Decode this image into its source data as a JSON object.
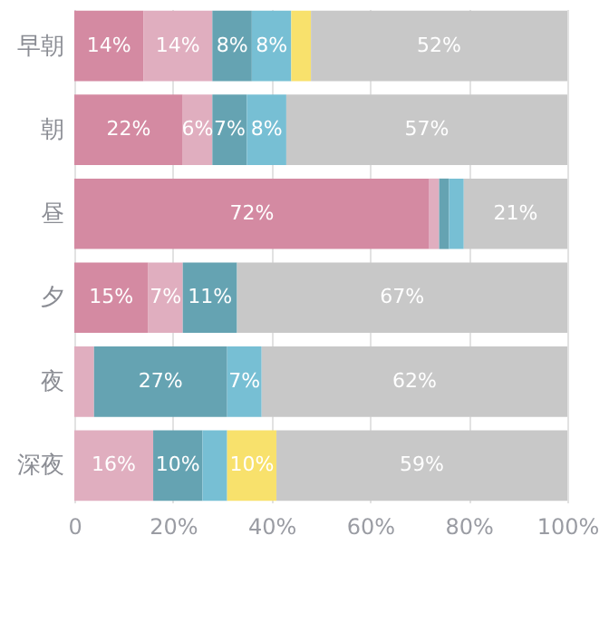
{
  "chart_data": {
    "type": "bar",
    "orientation": "horizontal",
    "stacked": true,
    "categories": [
      "早朝",
      "朝",
      "昼",
      "夕",
      "夜",
      "深夜"
    ],
    "series": [
      {
        "color": "#d48aa2",
        "values": [
          14,
          22,
          72,
          15,
          0,
          0
        ],
        "value_labels": [
          "14%",
          "22%",
          "72%",
          "15%",
          null,
          null
        ]
      },
      {
        "color": "#e0aebf",
        "values": [
          14,
          6,
          2,
          7,
          4,
          16
        ],
        "value_labels": [
          "14%",
          "6%",
          null,
          "7%",
          null,
          "16%"
        ]
      },
      {
        "color": "#65a3b2",
        "values": [
          8,
          7,
          2,
          11,
          27,
          10
        ],
        "value_labels": [
          "8%",
          "7%",
          null,
          "11%",
          "27%",
          "10%"
        ]
      },
      {
        "color": "#77bfd4",
        "values": [
          8,
          8,
          3,
          0,
          7,
          5
        ],
        "value_labels": [
          "8%",
          "8%",
          null,
          null,
          "7%",
          null
        ]
      },
      {
        "color": "#f8e16c",
        "values": [
          4,
          0,
          0,
          0,
          0,
          10
        ],
        "value_labels": [
          null,
          null,
          null,
          null,
          null,
          "10%"
        ]
      },
      {
        "color": "#c8c8c8",
        "values": [
          52,
          57,
          21,
          67,
          62,
          59
        ],
        "value_labels": [
          "52%",
          "57%",
          "21%",
          "67%",
          "62%",
          "59%"
        ]
      }
    ],
    "xlim": [
      0,
      100
    ],
    "xticks": [
      {
        "value": 0,
        "label": "0"
      },
      {
        "value": 20,
        "label": "20%"
      },
      {
        "value": 40,
        "label": "40%"
      },
      {
        "value": 60,
        "label": "60%"
      },
      {
        "value": 80,
        "label": "80%"
      },
      {
        "value": 100,
        "label": "100%"
      }
    ],
    "grid": "x"
  }
}
